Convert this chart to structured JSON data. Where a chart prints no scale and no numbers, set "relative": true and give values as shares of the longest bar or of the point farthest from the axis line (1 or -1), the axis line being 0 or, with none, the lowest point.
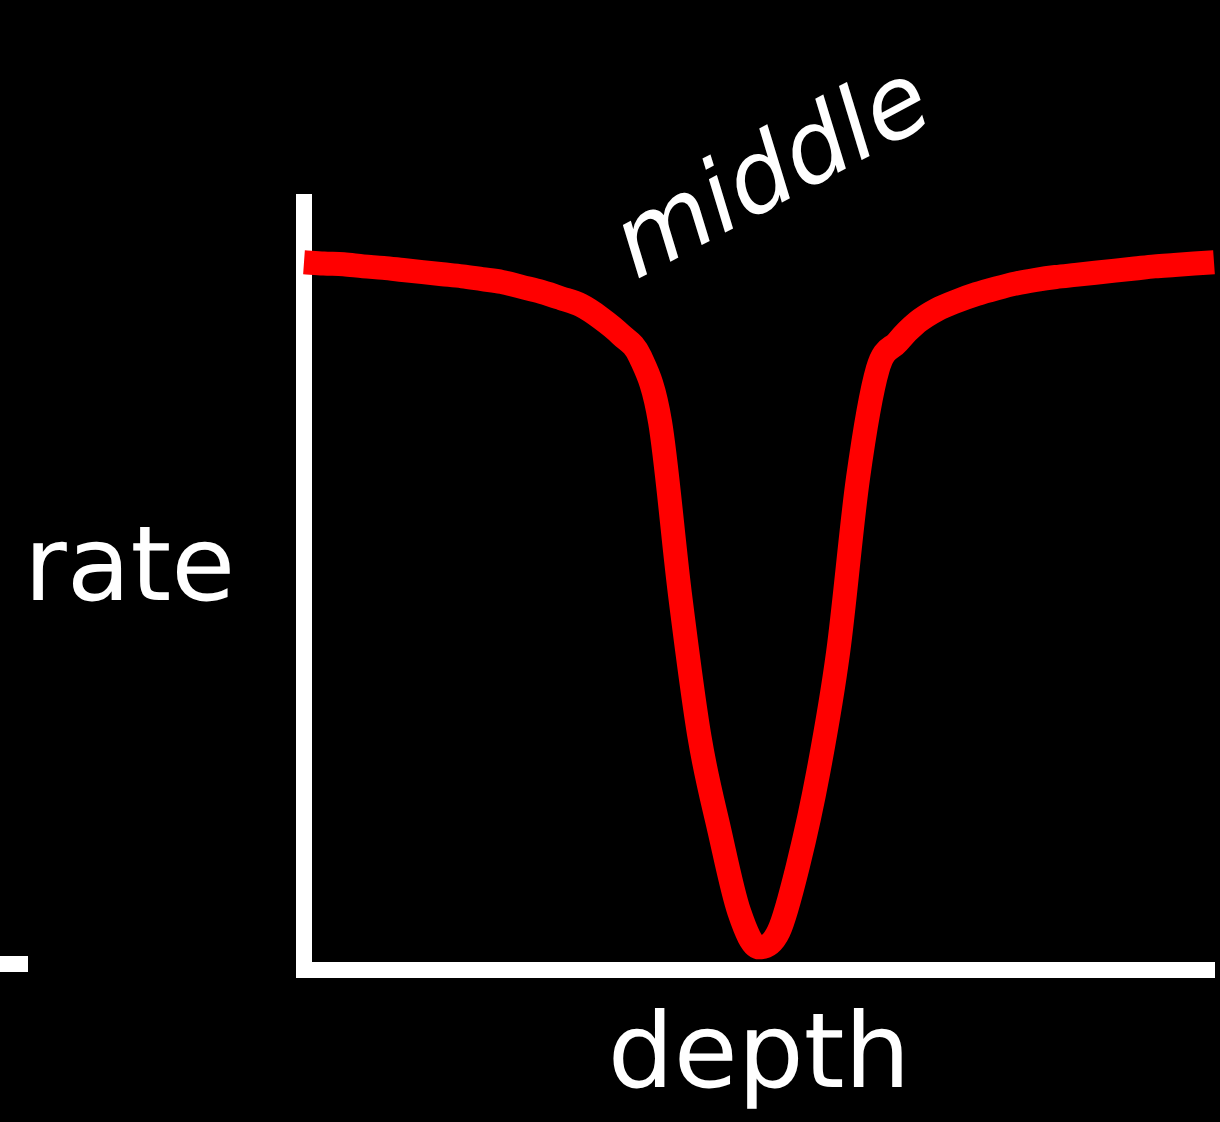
{
  "chart_data": {
    "type": "line",
    "xlabel": "depth",
    "ylabel": "rate",
    "annotations": [
      "middle"
    ],
    "relative": true,
    "categories": [
      null,
      null,
      null,
      null,
      null,
      null,
      null,
      null,
      null,
      null,
      null,
      null,
      null,
      null,
      null,
      null,
      null,
      null,
      null,
      null,
      null,
      null,
      null,
      null,
      null,
      null,
      null,
      null,
      null,
      null,
      null,
      null,
      null,
      null,
      null,
      null,
      null,
      null,
      null,
      null,
      null,
      null,
      null,
      null,
      null,
      null,
      null
    ],
    "series": [
      {
        "color": "#ff0000",
        "values": [
          1,
          0.998,
          0.997,
          0.994,
          0.992,
          0.989,
          0.986,
          0.983,
          0.98,
          0.976,
          0.972,
          0.965,
          0.958,
          0.949,
          0.939,
          0.921,
          0.898,
          0.866,
          0.774,
          0.532,
          0.328,
          0.197,
          0.082,
          0.032,
          0.055,
          0.151,
          0.28,
          0.449,
          0.694,
          0.849,
          0.887,
          0.915,
          0.933,
          0.945,
          0.955,
          0.963,
          0.97,
          0.975,
          0.979,
          0.982,
          0.985,
          0.988,
          0.991,
          0.994,
          0.996,
          0.998,
          1
        ]
      }
    ],
    "marker": "none",
    "line_style": "solid"
  }
}
